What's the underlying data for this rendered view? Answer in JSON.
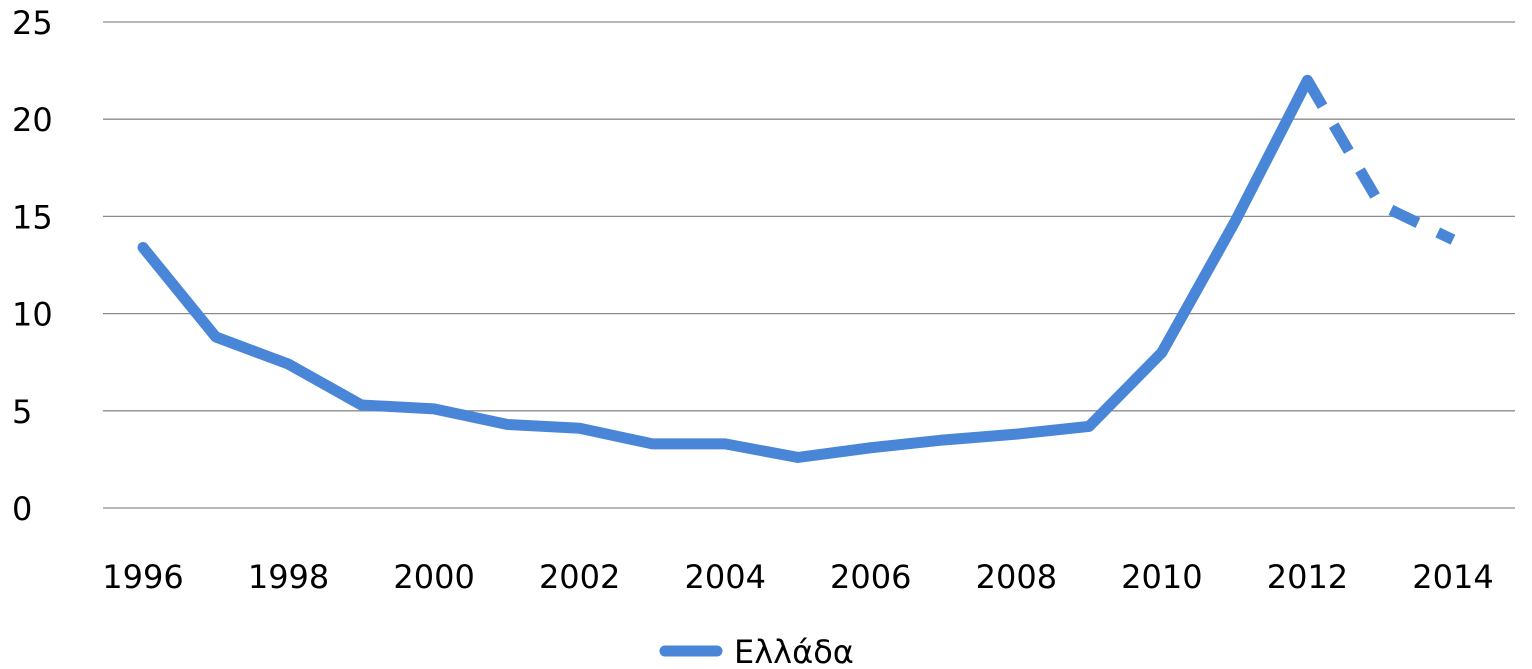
{
  "chart_data": {
    "type": "line",
    "x": [
      1996,
      1997,
      1998,
      1999,
      2000,
      2001,
      2002,
      2003,
      2004,
      2005,
      2006,
      2007,
      2008,
      2009,
      2010,
      2011,
      2012,
      2013,
      2014
    ],
    "series": [
      {
        "name": "Ελλάδα",
        "values": [
          13.4,
          8.8,
          7.4,
          5.3,
          5.1,
          4.3,
          4.1,
          3.3,
          3.3,
          2.6,
          3.1,
          3.5,
          3.8,
          4.2,
          8.0,
          14.7,
          22.0,
          15.6,
          13.8
        ],
        "dashed_from_x": 2012,
        "color": "#4A86D8"
      }
    ],
    "title": "",
    "xlabel": "",
    "ylabel": "",
    "ylim": [
      0,
      25
    ],
    "y_ticks": [
      "0",
      "5",
      "10",
      "15",
      "20",
      "25"
    ],
    "x_tick_labels": [
      "1996",
      "1998",
      "2000",
      "2002",
      "2004",
      "2006",
      "2008",
      "2010",
      "2012",
      "2014"
    ],
    "grid": true,
    "legend_position": "bottom"
  }
}
